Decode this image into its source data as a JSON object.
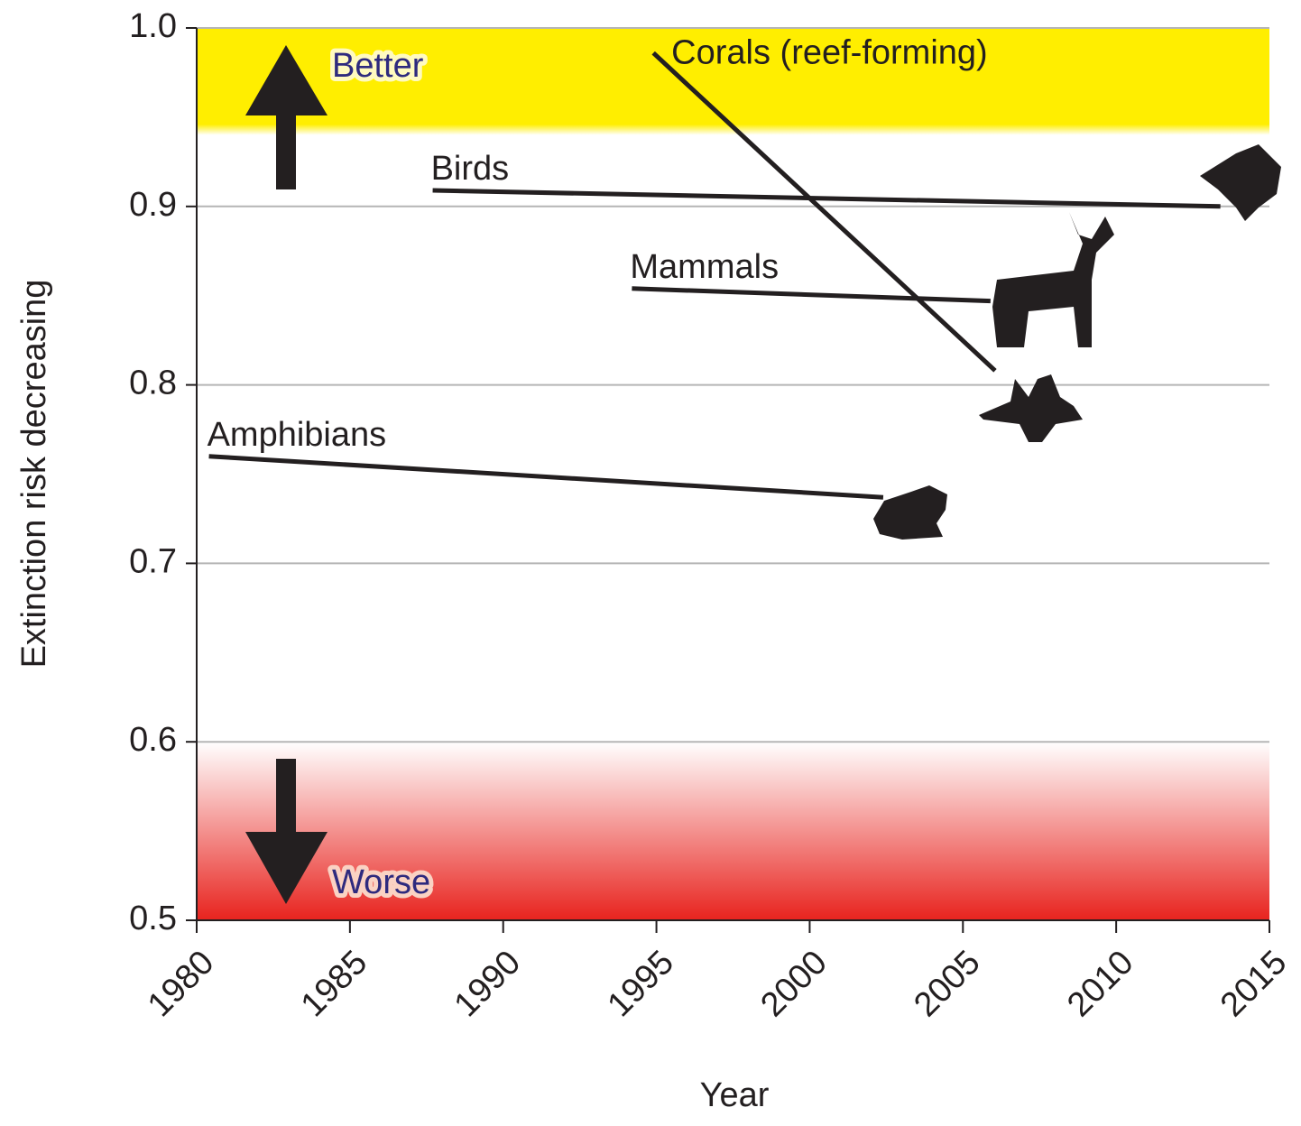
{
  "chart_data": {
    "type": "line",
    "xlabel": "Year",
    "ylabel": "Extinction risk decreasing",
    "xlim": [
      1980,
      2015
    ],
    "xticks": [
      1980,
      1985,
      1990,
      1995,
      2000,
      2005,
      2010,
      2015
    ],
    "ylim": [
      0.5,
      1
    ],
    "yticks": [
      0.5,
      0.6,
      0.7,
      0.8,
      0.9,
      {
        "value": 1,
        "label": "1.0"
      }
    ],
    "grid": true,
    "bands": [
      {
        "from": 0.94,
        "to": 1,
        "color": "#ffee00"
      },
      {
        "from": 0.5,
        "to": 0.6,
        "color": "#e8231e"
      }
    ],
    "annotations": [
      "Better",
      "Worse"
    ],
    "series": [
      {
        "name": "Corals (reef-forming)",
        "color": "#231f20",
        "x": [
          1994.9,
          2006.05
        ],
        "values": [
          0.986,
          0.808
        ]
      },
      {
        "name": "Birds",
        "color": "#231f20",
        "x": [
          1987.7,
          2013.4
        ],
        "values": [
          0.909,
          0.9
        ]
      },
      {
        "name": "Mammals",
        "color": "#231f20",
        "x": [
          1994.2,
          2005.9
        ],
        "values": [
          0.854,
          0.847
        ]
      },
      {
        "name": "Amphibians",
        "color": "#231f20",
        "x": [
          1980.4,
          2002.4
        ],
        "values": [
          0.76,
          0.737
        ]
      }
    ]
  }
}
